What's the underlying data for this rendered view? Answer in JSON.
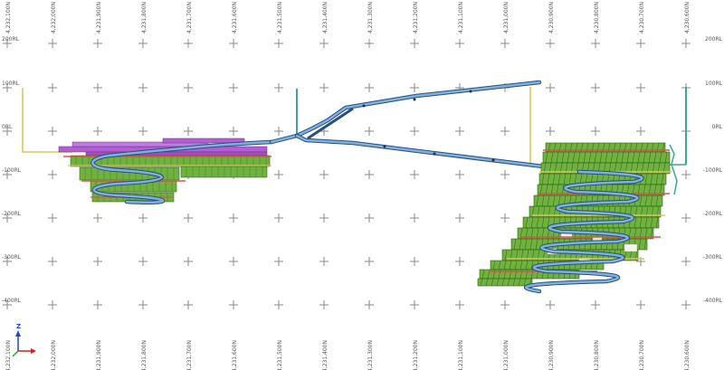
{
  "colors": {
    "background": "#ffffff",
    "grid": "#8a8a8a",
    "label": "#555555",
    "ramp": "#5b8fc7",
    "ramp_outline": "#2a4f7a",
    "stope_green": "#6fb23f",
    "stope_purple": "#b25fd0",
    "drive_red": "#d9534f",
    "drive_yellow": "#d8c85a",
    "shaft_teal": "#3fa693",
    "axis_x": "#cc2222",
    "axis_y": "#22aa22",
    "axis_z": "#2244cc"
  },
  "northing_labels": [
    "4,232,100N",
    "4,232,000N",
    "4,231,900N",
    "4,231,800N",
    "4,231,700N",
    "4,231,600N",
    "4,231,500N",
    "4,231,400N",
    "4,231,300N",
    "4,231,200N",
    "4,231,100N",
    "4,231,000N",
    "4,230,900N",
    "4,230,800N",
    "4,230,700N",
    "4,230,600N"
  ],
  "rl_labels": [
    "200RL",
    "100RL",
    "0RL",
    "-100RL",
    "-200RL",
    "-300RL",
    "-400RL"
  ],
  "axis_triad": {
    "z": "Z",
    "y": "Y",
    "x": "X"
  }
}
